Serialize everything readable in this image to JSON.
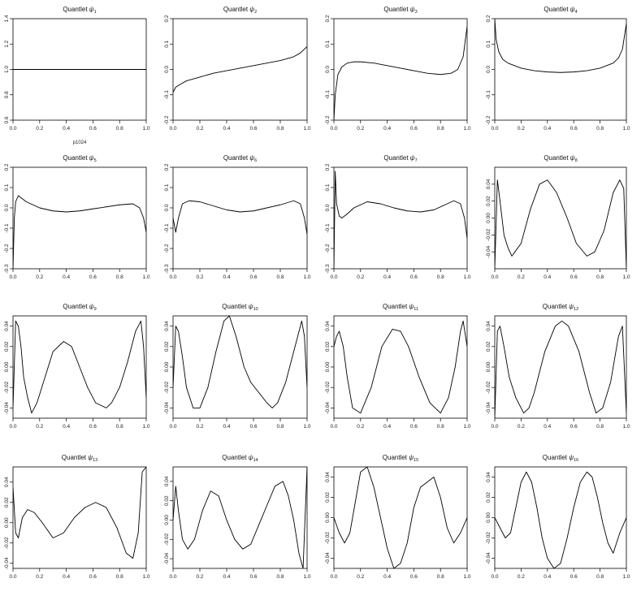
{
  "chart_data": [
    {
      "type": "line",
      "title_prefix": "Quantlet ",
      "title_symbol": "ψ",
      "title_index": "1",
      "xlim": [
        0,
        1
      ],
      "ylim": [
        0.6,
        1.4
      ],
      "xticks": [
        0,
        0.2,
        0.4,
        0.6,
        0.8,
        1
      ],
      "xtick_labels": [
        "0.0",
        "0.2",
        "0.4",
        "0.6",
        "0.8",
        "1.0"
      ],
      "yticks": [
        0.6,
        0.8,
        1.0,
        1.2,
        1.4
      ],
      "ytick_labels": [
        "0.6",
        "0.8",
        "1.0",
        "1.2",
        "1.4"
      ],
      "annotation": "p1024",
      "x": [
        0,
        1
      ],
      "y": [
        1,
        1
      ]
    },
    {
      "type": "line",
      "title_prefix": "Quantlet ",
      "title_symbol": "ψ",
      "title_index": "2",
      "xlim": [
        0,
        1
      ],
      "ylim": [
        -0.2,
        0.2
      ],
      "xticks": [
        0,
        0.2,
        0.4,
        0.6,
        0.8,
        1
      ],
      "xtick_labels": [
        "0.0",
        "0.2",
        "0.4",
        "0.6",
        "0.8",
        "1.0"
      ],
      "yticks": [
        -0.2,
        -0.1,
        0,
        0.1,
        0.2
      ],
      "ytick_labels": [
        "-0.2",
        "-0.1",
        "0.0",
        "0.1",
        "0.2"
      ],
      "x": [
        0,
        0.02,
        0.05,
        0.1,
        0.2,
        0.3,
        0.4,
        0.5,
        0.6,
        0.7,
        0.8,
        0.9,
        0.95,
        1
      ],
      "y": [
        -0.09,
        -0.07,
        -0.06,
        -0.045,
        -0.03,
        -0.015,
        -0.005,
        0.005,
        0.015,
        0.025,
        0.035,
        0.05,
        0.065,
        0.09
      ]
    },
    {
      "type": "line",
      "title_prefix": "Quantlet ",
      "title_symbol": "ψ",
      "title_index": "3",
      "xlim": [
        0,
        1
      ],
      "ylim": [
        -0.2,
        0.2
      ],
      "xticks": [
        0,
        0.2,
        0.4,
        0.6,
        0.8,
        1
      ],
      "xtick_labels": [
        "0.0",
        "0.2",
        "0.4",
        "0.6",
        "0.8",
        "1.0"
      ],
      "yticks": [
        -0.2,
        -0.1,
        0,
        0.1,
        0.2
      ],
      "ytick_labels": [
        "-0.2",
        "-0.1",
        "0.0",
        "0.1",
        "0.2"
      ],
      "x": [
        0,
        0.01,
        0.03,
        0.06,
        0.1,
        0.15,
        0.2,
        0.3,
        0.4,
        0.5,
        0.6,
        0.7,
        0.8,
        0.88,
        0.93,
        0.97,
        1
      ],
      "y": [
        -0.2,
        -0.1,
        -0.02,
        0.01,
        0.025,
        0.03,
        0.03,
        0.025,
        0.015,
        0.005,
        -0.005,
        -0.015,
        -0.02,
        -0.015,
        0.0,
        0.05,
        0.17
      ]
    },
    {
      "type": "line",
      "title_prefix": "Quantlet ",
      "title_symbol": "ψ",
      "title_index": "4",
      "xlim": [
        0,
        1
      ],
      "ylim": [
        -0.2,
        0.2
      ],
      "xticks": [
        0,
        0.2,
        0.4,
        0.6,
        0.8,
        1
      ],
      "xtick_labels": [
        "0.0",
        "0.2",
        "0.4",
        "0.6",
        "0.8",
        "1.0"
      ],
      "yticks": [
        -0.2,
        -0.1,
        0,
        0.1,
        0.2
      ],
      "ytick_labels": [
        "-0.2",
        "-0.1",
        "0.0",
        "0.1",
        "0.2"
      ],
      "x": [
        0,
        0.01,
        0.03,
        0.06,
        0.1,
        0.2,
        0.3,
        0.4,
        0.5,
        0.6,
        0.7,
        0.8,
        0.9,
        0.94,
        0.97,
        1
      ],
      "y": [
        0.2,
        0.12,
        0.07,
        0.04,
        0.025,
        0.005,
        -0.005,
        -0.01,
        -0.012,
        -0.01,
        -0.005,
        0.005,
        0.025,
        0.045,
        0.08,
        0.18
      ]
    },
    {
      "type": "line",
      "title_prefix": "Quantlet ",
      "title_symbol": "ψ",
      "title_index": "5",
      "xlim": [
        0,
        1
      ],
      "ylim": [
        -0.3,
        0.2
      ],
      "xticks": [
        0,
        0.2,
        0.4,
        0.6,
        0.8,
        1
      ],
      "xtick_labels": [
        "0.0",
        "0.2",
        "0.4",
        "0.6",
        "0.8",
        "1.0"
      ],
      "yticks": [
        -0.3,
        -0.2,
        -0.1,
        0,
        0.1,
        0.2
      ],
      "ytick_labels": [
        "-0.3",
        "-0.2",
        "-0.1",
        "0.0",
        "0.1",
        "0.2"
      ],
      "x": [
        0,
        0.01,
        0.02,
        0.04,
        0.06,
        0.1,
        0.2,
        0.3,
        0.4,
        0.5,
        0.6,
        0.7,
        0.8,
        0.9,
        0.95,
        0.98,
        1
      ],
      "y": [
        -0.3,
        -0.05,
        0.03,
        0.06,
        0.05,
        0.03,
        0.0,
        -0.015,
        -0.02,
        -0.015,
        -0.005,
        0.005,
        0.015,
        0.02,
        0.0,
        -0.05,
        -0.12
      ]
    },
    {
      "type": "line",
      "title_prefix": "Quantlet ",
      "title_symbol": "ψ",
      "title_index": "6",
      "xlim": [
        0,
        1
      ],
      "ylim": [
        -0.3,
        0.2
      ],
      "xticks": [
        0,
        0.2,
        0.4,
        0.6,
        0.8,
        1
      ],
      "xtick_labels": [
        "0.0",
        "0.2",
        "0.4",
        "0.6",
        "0.8",
        "1.0"
      ],
      "yticks": [
        -0.3,
        -0.2,
        -0.1,
        0,
        0.1,
        0.2
      ],
      "ytick_labels": [
        "-0.3",
        "-0.2",
        "-0.1",
        "0.0",
        "0.1",
        "0.2"
      ],
      "x": [
        0,
        0.02,
        0.04,
        0.07,
        0.12,
        0.2,
        0.3,
        0.4,
        0.5,
        0.6,
        0.7,
        0.8,
        0.9,
        0.95,
        0.98,
        1
      ],
      "y": [
        -0.05,
        -0.12,
        -0.05,
        0.02,
        0.035,
        0.03,
        0.01,
        -0.01,
        -0.02,
        -0.015,
        0.0,
        0.015,
        0.035,
        0.02,
        -0.05,
        -0.13
      ]
    },
    {
      "type": "line",
      "title_prefix": "Quantlet ",
      "title_symbol": "ψ",
      "title_index": "7",
      "xlim": [
        0,
        1
      ],
      "ylim": [
        -0.3,
        0.2
      ],
      "xticks": [
        0,
        0.2,
        0.4,
        0.6,
        0.8,
        1
      ],
      "xtick_labels": [
        "0.0",
        "0.2",
        "0.4",
        "0.6",
        "0.8",
        "1.0"
      ],
      "yticks": [
        -0.3,
        -0.2,
        -0.1,
        0,
        0.1,
        0.2
      ],
      "ytick_labels": [
        "-0.3",
        "-0.2",
        "-0.1",
        "0.0",
        "0.1",
        "0.2"
      ],
      "x": [
        0,
        0.01,
        0.02,
        0.04,
        0.06,
        0.1,
        0.15,
        0.25,
        0.35,
        0.45,
        0.55,
        0.65,
        0.75,
        0.85,
        0.9,
        0.95,
        0.98,
        1
      ],
      "y": [
        -0.3,
        0.18,
        0.02,
        -0.04,
        -0.05,
        -0.03,
        0.0,
        0.03,
        0.02,
        0.0,
        -0.015,
        -0.02,
        -0.01,
        0.02,
        0.035,
        0.02,
        -0.05,
        -0.15
      ]
    },
    {
      "type": "line",
      "title_prefix": "Quantlet ",
      "title_symbol": "ψ",
      "title_index": "8",
      "xlim": [
        0,
        1
      ],
      "ylim": [
        -0.06,
        0.06
      ],
      "xticks": [
        0,
        0.2,
        0.4,
        0.6,
        0.8,
        1
      ],
      "xtick_labels": [
        "0.0",
        "0.2",
        "0.4",
        "0.6",
        "0.8",
        "1.0"
      ],
      "yticks": [
        -0.04,
        -0.02,
        0,
        0.02,
        0.04
      ],
      "ytick_labels": [
        "-0.04",
        "-0.02",
        "0.00",
        "0.02",
        "0.04"
      ],
      "x": [
        0,
        0.02,
        0.04,
        0.07,
        0.1,
        0.13,
        0.2,
        0.27,
        0.34,
        0.4,
        0.47,
        0.55,
        0.62,
        0.7,
        0.76,
        0.83,
        0.9,
        0.95,
        0.98,
        1
      ],
      "y": [
        -0.06,
        0.045,
        0.02,
        -0.02,
        -0.035,
        -0.045,
        -0.03,
        0.01,
        0.04,
        0.045,
        0.03,
        0.0,
        -0.03,
        -0.045,
        -0.04,
        -0.015,
        0.03,
        0.045,
        0.035,
        -0.06
      ]
    },
    {
      "type": "line",
      "title_prefix": "Quantlet ",
      "title_symbol": "ψ",
      "title_index": "9",
      "xlim": [
        0,
        1
      ],
      "ylim": [
        -0.05,
        0.05
      ],
      "xticks": [
        0,
        0.2,
        0.4,
        0.6,
        0.8,
        1
      ],
      "xtick_labels": [
        "0.0",
        "0.2",
        "0.4",
        "0.6",
        "0.8",
        "1.0"
      ],
      "yticks": [
        -0.04,
        -0.02,
        0,
        0.02,
        0.04
      ],
      "ytick_labels": [
        "-0.04",
        "-0.02",
        "0.00",
        "0.02",
        "0.04"
      ],
      "x": [
        0,
        0.02,
        0.04,
        0.06,
        0.08,
        0.11,
        0.14,
        0.18,
        0.24,
        0.3,
        0.38,
        0.44,
        0.5,
        0.56,
        0.62,
        0.7,
        0.74,
        0.8,
        0.86,
        0.92,
        0.96,
        0.98,
        1
      ],
      "y": [
        -0.04,
        0.045,
        0.04,
        0.02,
        -0.01,
        -0.03,
        -0.045,
        -0.035,
        -0.01,
        0.015,
        0.025,
        0.02,
        0.0,
        -0.02,
        -0.035,
        -0.04,
        -0.035,
        -0.02,
        0.005,
        0.035,
        0.045,
        0.02,
        -0.03
      ]
    },
    {
      "type": "line",
      "title_prefix": "Quantlet ",
      "title_symbol": "ψ",
      "title_index": "10",
      "xlim": [
        0,
        1
      ],
      "ylim": [
        -0.05,
        0.05
      ],
      "xticks": [
        0,
        0.2,
        0.4,
        0.6,
        0.8,
        1
      ],
      "xtick_labels": [
        "0.0",
        "0.2",
        "0.4",
        "0.6",
        "0.8",
        "1.0"
      ],
      "yticks": [
        -0.04,
        -0.02,
        0,
        0.02,
        0.04
      ],
      "ytick_labels": [
        "-0.04",
        "-0.02",
        "0.00",
        "0.02",
        "0.04"
      ],
      "x": [
        0,
        0.02,
        0.04,
        0.07,
        0.1,
        0.15,
        0.2,
        0.26,
        0.32,
        0.38,
        0.42,
        0.47,
        0.53,
        0.58,
        0.64,
        0.7,
        0.74,
        0.78,
        0.84,
        0.9,
        0.96,
        0.98,
        1
      ],
      "y": [
        -0.02,
        0.04,
        0.035,
        0.01,
        -0.02,
        -0.04,
        -0.04,
        -0.02,
        0.015,
        0.045,
        0.05,
        0.03,
        0.0,
        -0.015,
        -0.025,
        -0.035,
        -0.04,
        -0.035,
        -0.015,
        0.015,
        0.045,
        0.03,
        -0.02
      ]
    },
    {
      "type": "line",
      "title_prefix": "Quantlet ",
      "title_symbol": "ψ",
      "title_index": "11",
      "xlim": [
        0,
        1
      ],
      "ylim": [
        -0.05,
        0.05
      ],
      "xticks": [
        0,
        0.2,
        0.4,
        0.6,
        0.8,
        1
      ],
      "xtick_labels": [
        "0.0",
        "0.2",
        "0.4",
        "0.6",
        "0.8",
        "1.0"
      ],
      "yticks": [
        -0.04,
        -0.02,
        0,
        0.02,
        0.04
      ],
      "ytick_labels": [
        "-0.04",
        "-0.02",
        "0.00",
        "0.02",
        "0.04"
      ],
      "x": [
        0,
        0.02,
        0.04,
        0.07,
        0.1,
        0.14,
        0.2,
        0.28,
        0.36,
        0.44,
        0.5,
        0.56,
        0.64,
        0.72,
        0.8,
        0.86,
        0.91,
        0.95,
        0.97,
        1
      ],
      "y": [
        0.02,
        0.03,
        0.035,
        0.02,
        -0.01,
        -0.04,
        -0.045,
        -0.02,
        0.02,
        0.037,
        0.035,
        0.02,
        -0.01,
        -0.035,
        -0.045,
        -0.03,
        0.0,
        0.035,
        0.045,
        0.02
      ]
    },
    {
      "type": "line",
      "title_prefix": "Quantlet ",
      "title_symbol": "ψ",
      "title_index": "12",
      "xlim": [
        0,
        1
      ],
      "ylim": [
        -0.05,
        0.05
      ],
      "xticks": [
        0,
        0.2,
        0.4,
        0.6,
        0.8,
        1
      ],
      "xtick_labels": [
        "0.0",
        "0.2",
        "0.4",
        "0.6",
        "0.8",
        "1.0"
      ],
      "yticks": [
        -0.04,
        -0.02,
        0,
        0.02,
        0.04
      ],
      "ytick_labels": [
        "-0.04",
        "-0.02",
        "0.00",
        "0.02",
        "0.04"
      ],
      "x": [
        0,
        0.02,
        0.04,
        0.07,
        0.11,
        0.16,
        0.22,
        0.26,
        0.3,
        0.38,
        0.46,
        0.51,
        0.56,
        0.64,
        0.72,
        0.77,
        0.82,
        0.88,
        0.94,
        0.97,
        1
      ],
      "y": [
        -0.05,
        0.035,
        0.04,
        0.02,
        -0.01,
        -0.03,
        -0.045,
        -0.04,
        -0.025,
        0.015,
        0.04,
        0.045,
        0.04,
        0.015,
        -0.025,
        -0.045,
        -0.04,
        -0.015,
        0.03,
        0.04,
        -0.045
      ]
    },
    {
      "type": "line",
      "title_prefix": "Quantlet ",
      "title_symbol": "ψ",
      "title_index": "13",
      "xlim": [
        0,
        1
      ],
      "ylim": [
        -0.045,
        0.055
      ],
      "xticks": [
        0,
        0.2,
        0.4,
        0.6,
        0.8,
        1
      ],
      "xtick_labels": [
        "0.0",
        "0.2",
        "0.4",
        "0.6",
        "0.8",
        "1.0"
      ],
      "yticks": [
        -0.04,
        -0.02,
        0,
        0.02,
        0.04
      ],
      "ytick_labels": [
        "-0.04",
        "-0.02",
        "0.00",
        "0.02",
        "0.04"
      ],
      "x": [
        0,
        0.02,
        0.04,
        0.07,
        0.11,
        0.16,
        0.22,
        0.3,
        0.38,
        0.46,
        0.54,
        0.62,
        0.7,
        0.78,
        0.85,
        0.9,
        0.94,
        0.97,
        1
      ],
      "y": [
        0.035,
        -0.01,
        -0.015,
        0.005,
        0.013,
        0.01,
        0.0,
        -0.015,
        -0.01,
        0.005,
        0.015,
        0.02,
        0.015,
        -0.005,
        -0.03,
        -0.035,
        -0.01,
        0.05,
        0.055
      ]
    },
    {
      "type": "line",
      "title_prefix": "Quantlet ",
      "title_symbol": "ψ",
      "title_index": "14",
      "xlim": [
        0,
        1
      ],
      "ylim": [
        -0.05,
        0.055
      ],
      "xticks": [
        0,
        0.2,
        0.4,
        0.6,
        0.8,
        1
      ],
      "xtick_labels": [
        "0.0",
        "0.2",
        "0.4",
        "0.6",
        "0.8",
        "1.0"
      ],
      "yticks": [
        -0.04,
        -0.02,
        0,
        0.02,
        0.04
      ],
      "ytick_labels": [
        "-0.04",
        "-0.02",
        "0.00",
        "0.02",
        "0.04"
      ],
      "x": [
        0,
        0.02,
        0.04,
        0.07,
        0.11,
        0.16,
        0.22,
        0.28,
        0.34,
        0.4,
        0.46,
        0.52,
        0.58,
        0.64,
        0.7,
        0.76,
        0.82,
        0.86,
        0.9,
        0.94,
        0.97,
        1
      ],
      "y": [
        0.0,
        0.035,
        0.01,
        -0.02,
        -0.03,
        -0.02,
        0.01,
        0.03,
        0.025,
        0.0,
        -0.02,
        -0.03,
        -0.025,
        -0.005,
        0.015,
        0.035,
        0.04,
        0.025,
        0.0,
        -0.035,
        -0.05,
        0.055
      ]
    },
    {
      "type": "line",
      "title_prefix": "Quantlet ",
      "title_symbol": "ψ",
      "title_index": "15",
      "xlim": [
        0,
        1
      ],
      "ylim": [
        -0.05,
        0.05
      ],
      "xticks": [
        0,
        0.2,
        0.4,
        0.6,
        0.8,
        1
      ],
      "xtick_labels": [
        "0.0",
        "0.2",
        "0.4",
        "0.6",
        "0.8",
        "1.0"
      ],
      "yticks": [
        -0.04,
        -0.02,
        0,
        0.02,
        0.04
      ],
      "ytick_labels": [
        "-0.04",
        "-0.02",
        "0.00",
        "0.02",
        "0.04"
      ],
      "x": [
        0,
        0.04,
        0.08,
        0.12,
        0.16,
        0.2,
        0.25,
        0.3,
        0.35,
        0.4,
        0.45,
        0.5,
        0.55,
        0.6,
        0.65,
        0.7,
        0.75,
        0.8,
        0.85,
        0.9,
        0.95,
        1
      ],
      "y": [
        0.0,
        -0.015,
        -0.025,
        -0.015,
        0.015,
        0.045,
        0.05,
        0.03,
        0.0,
        -0.03,
        -0.05,
        -0.045,
        -0.025,
        0.01,
        0.03,
        0.035,
        0.04,
        0.02,
        -0.01,
        -0.025,
        -0.015,
        0.0
      ]
    },
    {
      "type": "line",
      "title_prefix": "Quantlet ",
      "title_symbol": "ψ",
      "title_index": "16",
      "xlim": [
        0,
        1
      ],
      "ylim": [
        -0.05,
        0.05
      ],
      "xticks": [
        0,
        0.2,
        0.4,
        0.6,
        0.8,
        1
      ],
      "xtick_labels": [
        "0.0",
        "0.2",
        "0.4",
        "0.6",
        "0.8",
        "1.0"
      ],
      "yticks": [
        -0.04,
        -0.02,
        0,
        0.02,
        0.04
      ],
      "ytick_labels": [
        "-0.04",
        "-0.02",
        "0.00",
        "0.02",
        "0.04"
      ],
      "x": [
        0,
        0.04,
        0.08,
        0.12,
        0.16,
        0.2,
        0.24,
        0.28,
        0.32,
        0.36,
        0.4,
        0.45,
        0.5,
        0.55,
        0.6,
        0.65,
        0.7,
        0.74,
        0.78,
        0.82,
        0.86,
        0.9,
        0.95,
        1
      ],
      "y": [
        0.0,
        -0.01,
        -0.02,
        -0.015,
        0.01,
        0.035,
        0.045,
        0.035,
        0.01,
        -0.02,
        -0.04,
        -0.05,
        -0.045,
        -0.02,
        0.01,
        0.035,
        0.045,
        0.04,
        0.02,
        -0.005,
        -0.025,
        -0.035,
        -0.015,
        0.0
      ]
    }
  ]
}
